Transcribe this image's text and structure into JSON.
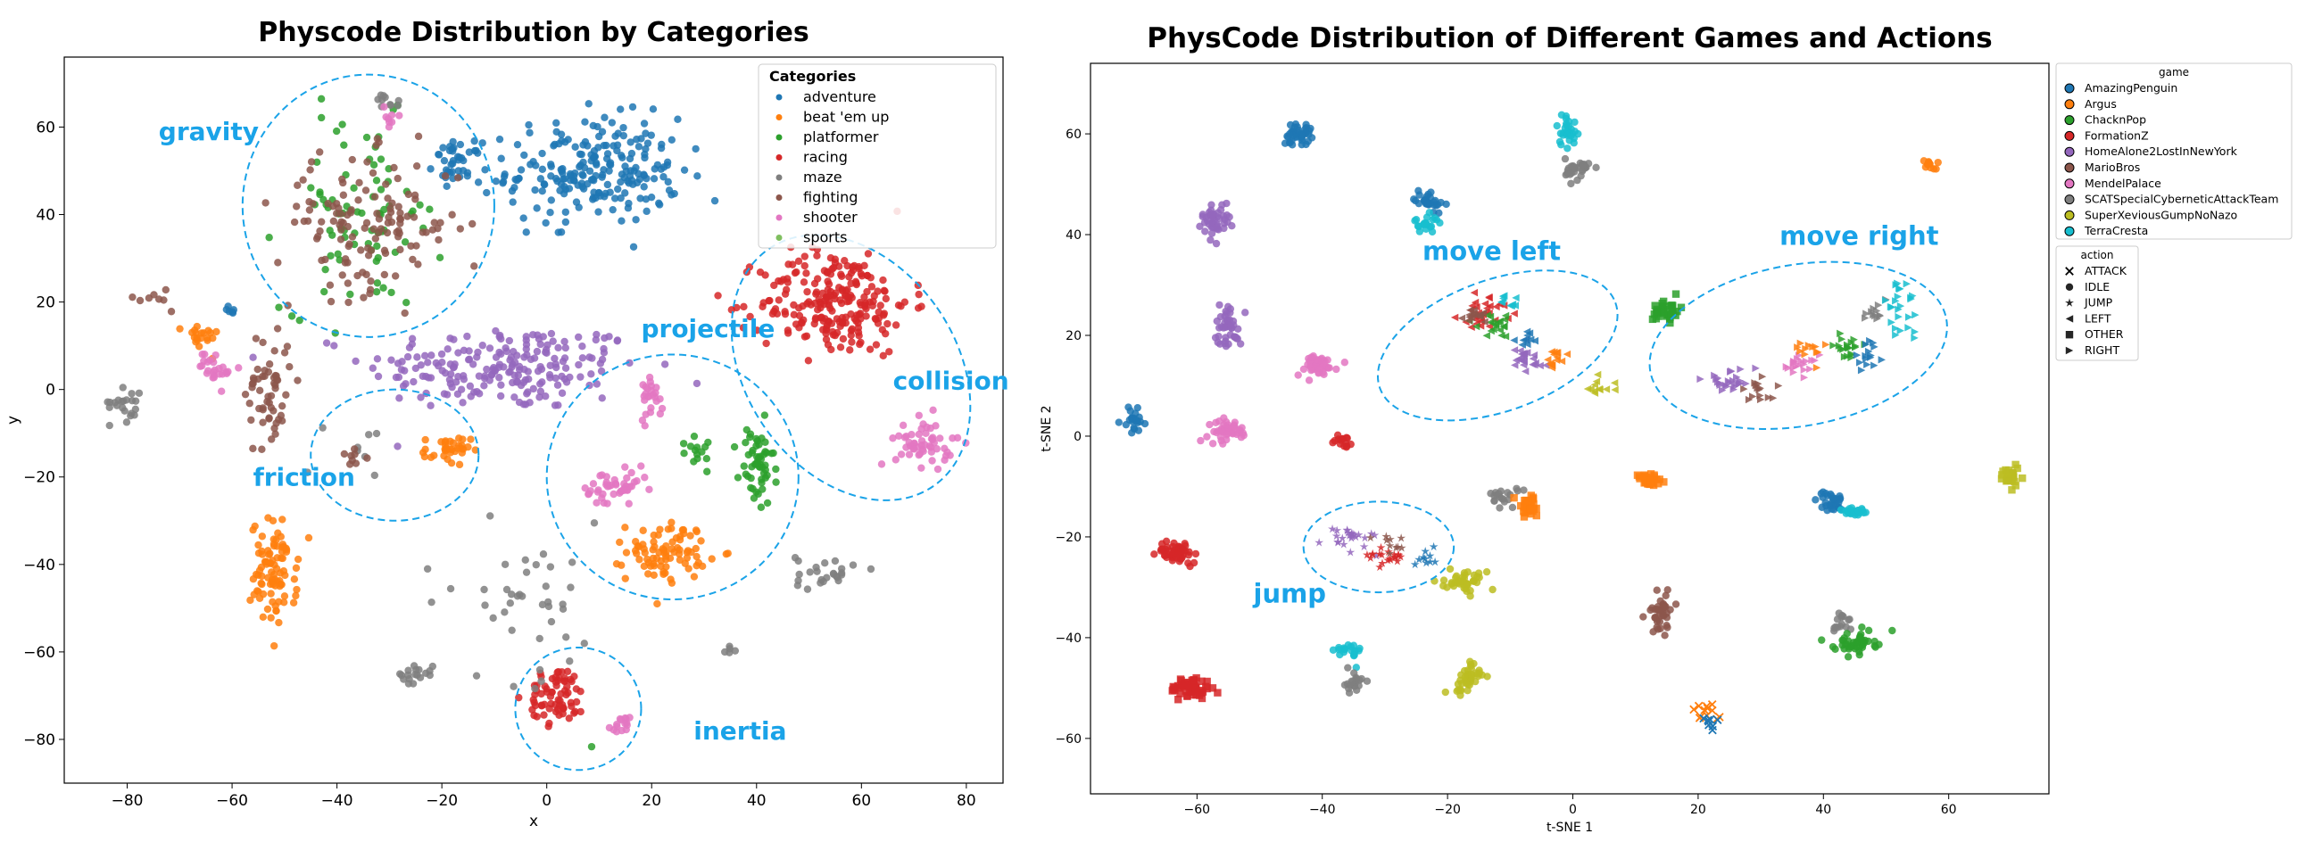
{
  "colors": {
    "adventure": "#1f77b4",
    "beat_em_up": "#ff7f0e",
    "platformer": "#2ca02c",
    "racing": "#d62728",
    "maze": "#7f7f7f",
    "fighting": "#8c564b",
    "shooter": "#e377c2",
    "sports": "#7fbf5f",
    "AmazingPenguin": "#1f77b4",
    "Argus": "#ff7f0e",
    "ChacknPop": "#2ca02c",
    "FormationZ": "#d62728",
    "HomeAlone2LostInNewYork": "#9467bd",
    "MarioBros": "#8c564b",
    "MendelPalace": "#e377c2",
    "SCATSpecialCyberneticAttackTeam": "#7f7f7f",
    "SuperXeviousGumpNoNazo": "#bcbd22",
    "TerraCresta": "#17becf",
    "annotation": "#1aa3e8"
  },
  "chart_data": [
    {
      "type": "scatter",
      "title": "Physcode Distribution by Categories",
      "xlabel": "x",
      "ylabel": "y",
      "xlim": [
        -92,
        87
      ],
      "ylim": [
        -90,
        76
      ],
      "xticks": [
        -80,
        -60,
        -40,
        -20,
        0,
        20,
        40,
        60,
        80
      ],
      "yticks": [
        60,
        40,
        20,
        0,
        -20,
        -40,
        -60,
        -80
      ],
      "grid": false,
      "legend": {
        "title": "Categories",
        "position": "top-right",
        "entries": [
          "adventure",
          "beat 'em up",
          "platformer",
          "racing",
          "maze",
          "fighting",
          "shooter",
          "sports"
        ]
      },
      "series": [
        {
          "name": "adventure",
          "color_key": "adventure",
          "clusters": [
            {
              "cx": 9,
              "cy": 50,
              "rx": 15,
              "ry": 11,
              "n": 220
            },
            {
              "cx": -17,
              "cy": 52,
              "rx": 4,
              "ry": 4,
              "n": 40
            },
            {
              "cx": -60,
              "cy": 18,
              "rx": 2,
              "ry": 1,
              "n": 6
            }
          ]
        },
        {
          "name": "beat 'em up",
          "color_key": "beat_em_up",
          "clusters": [
            {
              "cx": -52,
              "cy": -42,
              "rx": 4,
              "ry": 11,
              "n": 90
            },
            {
              "cx": 23,
              "cy": -37,
              "rx": 7,
              "ry": 6,
              "n": 85
            },
            {
              "cx": -19,
              "cy": -14,
              "rx": 4,
              "ry": 3,
              "n": 35
            },
            {
              "cx": -66,
              "cy": 12,
              "rx": 3,
              "ry": 3,
              "n": 20
            }
          ]
        },
        {
          "name": "platformer",
          "color_key": "platformer",
          "clusters": [
            {
              "cx": -35,
              "cy": 40,
              "rx": 14,
              "ry": 20,
              "n": 80
            },
            {
              "cx": 40,
              "cy": -18,
              "rx": 3,
              "ry": 9,
              "n": 55
            },
            {
              "cx": 28,
              "cy": -13,
              "rx": 5,
              "ry": 4,
              "n": 14
            },
            {
              "cx": 9,
              "cy": -82,
              "rx": 0.5,
              "ry": 0.5,
              "n": 1
            }
          ]
        },
        {
          "name": "racing",
          "color_key": "racing",
          "clusters": [
            {
              "cx": 55,
              "cy": 20,
              "rx": 13,
              "ry": 11,
              "n": 230
            },
            {
              "cx": 2,
              "cy": -70,
              "rx": 5,
              "ry": 6,
              "n": 70
            }
          ]
        },
        {
          "name": "maze",
          "color_key": "maze",
          "clusters": [
            {
              "cx": -80,
              "cy": -3,
              "rx": 3,
              "ry": 4,
              "n": 22
            },
            {
              "cx": -5,
              "cy": -48,
              "rx": 18,
              "ry": 16,
              "n": 40
            },
            {
              "cx": -25,
              "cy": -65,
              "rx": 3,
              "ry": 2,
              "n": 18
            },
            {
              "cx": 53,
              "cy": -42,
              "rx": 5,
              "ry": 4,
              "n": 25
            },
            {
              "cx": -35,
              "cy": -12,
              "rx": 6,
              "ry": 6,
              "n": 8
            },
            {
              "cx": 35,
              "cy": -60,
              "rx": 1,
              "ry": 1,
              "n": 5
            },
            {
              "cx": -30,
              "cy": 66,
              "rx": 3,
              "ry": 2,
              "n": 10
            }
          ]
        },
        {
          "name": "fighting",
          "color_key": "fighting",
          "clusters": [
            {
              "cx": -34,
              "cy": 38,
              "rx": 16,
              "ry": 14,
              "n": 130
            },
            {
              "cx": -53,
              "cy": 0,
              "rx": 4,
              "ry": 14,
              "n": 55
            },
            {
              "cx": -75,
              "cy": 21,
              "rx": 3,
              "ry": 2,
              "n": 8
            },
            {
              "cx": -37,
              "cy": -16,
              "rx": 4,
              "ry": 3,
              "n": 8
            }
          ]
        },
        {
          "name": "shooter",
          "color_key": "shooter",
          "clusters": [
            {
              "cx": 72,
              "cy": -12,
              "rx": 5,
              "ry": 5,
              "n": 55
            },
            {
              "cx": 13,
              "cy": -23,
              "rx": 6,
              "ry": 4,
              "n": 45
            },
            {
              "cx": 20,
              "cy": -1,
              "rx": 2,
              "ry": 5,
              "n": 25
            },
            {
              "cx": 14,
              "cy": -77,
              "rx": 2,
              "ry": 2,
              "n": 15
            },
            {
              "cx": -63,
              "cy": 5,
              "rx": 3,
              "ry": 4,
              "n": 25
            },
            {
              "cx": -30,
              "cy": 62,
              "rx": 2,
              "ry": 2,
              "n": 8
            }
          ]
        },
        {
          "name": "sports",
          "color_key": "sports",
          "clusters": []
        }
      ],
      "extra_clusters": [
        {
          "name": "violet",
          "color": "#9467bd",
          "cx": -8,
          "cy": 5,
          "rx": 24,
          "ry": 9,
          "n": 210
        }
      ],
      "annotations": [
        {
          "text": "gravity",
          "x": -74,
          "y": 57,
          "ellipse": {
            "cx": -34,
            "cy": 42,
            "rx": 24,
            "ry": 30
          }
        },
        {
          "text": "projectile",
          "x": 18,
          "y": 12,
          "ellipse": {
            "cx": 24,
            "cy": -20,
            "rx": 24,
            "ry": 28
          }
        },
        {
          "text": "collision",
          "x": 66,
          "y": 0,
          "ellipse": {
            "cx": 58,
            "cy": 5,
            "rx": 20,
            "ry": 33,
            "angle": -35
          }
        },
        {
          "text": "friction",
          "x": -56,
          "y": -22,
          "ellipse": {
            "cx": -29,
            "cy": -15,
            "rx": 16,
            "ry": 15
          }
        },
        {
          "text": "inertia",
          "x": 28,
          "y": -80,
          "ellipse": {
            "cx": 6,
            "cy": -73,
            "rx": 12,
            "ry": 14
          }
        }
      ]
    },
    {
      "type": "scatter",
      "title": "PhysCode Distribution of Different Games and Actions",
      "xlabel": "t-SNE 1",
      "ylabel": "t-SNE 2",
      "xlim": [
        -77,
        76
      ],
      "ylim": [
        -71,
        74
      ],
      "xticks": [
        -60,
        -40,
        -20,
        0,
        20,
        40,
        60
      ],
      "yticks": [
        60,
        40,
        20,
        0,
        -20,
        -40,
        -60
      ],
      "grid": false,
      "legends": [
        {
          "title": "game",
          "position": "right",
          "entries": [
            "AmazingPenguin",
            "Argus",
            "ChacknPop",
            "FormationZ",
            "HomeAlone2LostInNewYork",
            "MarioBros",
            "MendelPalace",
            "SCATSpecialCyberneticAttackTeam",
            "SuperXeviousGumpNoNazo",
            "TerraCresta"
          ]
        },
        {
          "title": "action",
          "position": "right",
          "entries": [
            "ATTACK",
            "IDLE",
            "JUMP",
            "LEFT",
            "OTHER",
            "RIGHT"
          ]
        }
      ],
      "clusters": [
        {
          "game": "AmazingPenguin",
          "action": "IDLE",
          "cx": -44,
          "cy": 60,
          "rx": 2,
          "ry": 2,
          "n": 40
        },
        {
          "game": "AmazingPenguin",
          "action": "IDLE",
          "cx": -70,
          "cy": 3,
          "rx": 1.5,
          "ry": 2,
          "n": 25
        },
        {
          "game": "AmazingPenguin",
          "action": "IDLE",
          "cx": -23,
          "cy": 47,
          "rx": 2,
          "ry": 2,
          "n": 30
        },
        {
          "game": "AmazingPenguin",
          "action": "IDLE",
          "cx": 41,
          "cy": -13,
          "rx": 2,
          "ry": 2,
          "n": 30
        },
        {
          "game": "TerraCresta",
          "action": "IDLE",
          "cx": -23,
          "cy": 42,
          "rx": 2,
          "ry": 1.5,
          "n": 20
        },
        {
          "game": "TerraCresta",
          "action": "IDLE",
          "cx": -1,
          "cy": 61,
          "rx": 1.5,
          "ry": 3,
          "n": 30
        },
        {
          "game": "TerraCresta",
          "action": "IDLE",
          "cx": 45,
          "cy": -15,
          "rx": 2,
          "ry": 1,
          "n": 25
        },
        {
          "game": "TerraCresta",
          "action": "IDLE",
          "cx": -36,
          "cy": -43,
          "rx": 2,
          "ry": 2,
          "n": 20
        },
        {
          "game": "SCATSpecialCyberneticAttackTeam",
          "action": "IDLE",
          "cx": 1,
          "cy": 53,
          "rx": 2,
          "ry": 2,
          "n": 30
        },
        {
          "game": "SCATSpecialCyberneticAttackTeam",
          "action": "IDLE",
          "cx": -35,
          "cy": -49,
          "rx": 1.5,
          "ry": 2,
          "n": 20
        },
        {
          "game": "SCATSpecialCyberneticAttackTeam",
          "action": "IDLE",
          "cx": -11,
          "cy": -12,
          "rx": 2,
          "ry": 2,
          "n": 20
        },
        {
          "game": "SCATSpecialCyberneticAttackTeam",
          "action": "IDLE",
          "cx": 43,
          "cy": -37,
          "rx": 1.5,
          "ry": 2,
          "n": 15
        },
        {
          "game": "HomeAlone2LostInNewYork",
          "action": "IDLE",
          "cx": -57,
          "cy": 43,
          "rx": 2,
          "ry": 3,
          "n": 45
        },
        {
          "game": "HomeAlone2LostInNewYork",
          "action": "IDLE",
          "cx": -55,
          "cy": 22,
          "rx": 2,
          "ry": 4,
          "n": 45
        },
        {
          "game": "MendelPalace",
          "action": "IDLE",
          "cx": -41,
          "cy": 14,
          "rx": 3,
          "ry": 2,
          "n": 45
        },
        {
          "game": "MendelPalace",
          "action": "IDLE",
          "cx": -55,
          "cy": 1,
          "rx": 3,
          "ry": 2,
          "n": 45
        },
        {
          "game": "FormationZ",
          "action": "IDLE",
          "cx": -37,
          "cy": -1,
          "rx": 1.5,
          "ry": 1,
          "n": 15
        },
        {
          "game": "FormationZ",
          "action": "IDLE",
          "cx": -63,
          "cy": -23,
          "rx": 3,
          "ry": 2,
          "n": 55
        },
        {
          "game": "FormationZ",
          "action": "OTHER",
          "cx": -61,
          "cy": -50,
          "rx": 3,
          "ry": 2,
          "n": 55
        },
        {
          "game": "ChacknPop",
          "action": "OTHER",
          "cx": 15,
          "cy": 25,
          "rx": 2,
          "ry": 2,
          "n": 35
        },
        {
          "game": "ChacknPop",
          "action": "IDLE",
          "cx": 45,
          "cy": -41,
          "rx": 3,
          "ry": 2,
          "n": 45
        },
        {
          "game": "Argus",
          "action": "OTHER",
          "cx": 12,
          "cy": -9,
          "rx": 2,
          "ry": 1.5,
          "n": 30
        },
        {
          "game": "Argus",
          "action": "OTHER",
          "cx": -7,
          "cy": -14,
          "rx": 2,
          "ry": 2,
          "n": 35
        },
        {
          "game": "Argus",
          "action": "IDLE",
          "cx": 57,
          "cy": 54,
          "rx": 1,
          "ry": 1,
          "n": 12
        },
        {
          "game": "SuperXeviousGumpNoNazo",
          "action": "IDLE",
          "cx": -17,
          "cy": -29,
          "rx": 3,
          "ry": 2,
          "n": 40
        },
        {
          "game": "SuperXeviousGumpNoNazo",
          "action": "IDLE",
          "cx": -17,
          "cy": -48,
          "rx": 2,
          "ry": 3,
          "n": 40
        },
        {
          "game": "SuperXeviousGumpNoNazo",
          "action": "OTHER",
          "cx": 70,
          "cy": -8,
          "rx": 2,
          "ry": 2,
          "n": 25
        },
        {
          "game": "MarioBros",
          "action": "IDLE",
          "cx": 14,
          "cy": -35,
          "rx": 2,
          "ry": 4,
          "n": 40
        },
        {
          "game": "Argus",
          "action": "ATTACK",
          "cx": 21,
          "cy": -55,
          "rx": 2,
          "ry": 2,
          "n": 12
        },
        {
          "game": "AmazingPenguin",
          "action": "ATTACK",
          "cx": 22,
          "cy": -57,
          "rx": 1,
          "ry": 1,
          "n": 8
        },
        {
          "game": "FormationZ",
          "action": "LEFT",
          "cx": -14,
          "cy": 25,
          "rx": 4,
          "ry": 3,
          "n": 30
        },
        {
          "game": "ChacknPop",
          "action": "LEFT",
          "cx": -12,
          "cy": 22,
          "rx": 3,
          "ry": 2,
          "n": 20
        },
        {
          "game": "MarioBros",
          "action": "LEFT",
          "cx": -16,
          "cy": 24,
          "rx": 3,
          "ry": 2,
          "n": 15
        },
        {
          "game": "HomeAlone2LostInNewYork",
          "action": "LEFT",
          "cx": -8,
          "cy": 15,
          "rx": 3,
          "ry": 3,
          "n": 25
        },
        {
          "game": "Argus",
          "action": "LEFT",
          "cx": -3,
          "cy": 15,
          "rx": 2,
          "ry": 2,
          "n": 15
        },
        {
          "game": "SuperXeviousGumpNoNazo",
          "action": "LEFT",
          "cx": 4,
          "cy": 10,
          "rx": 2,
          "ry": 2,
          "n": 12
        },
        {
          "game": "AmazingPenguin",
          "action": "LEFT",
          "cx": -7,
          "cy": 19,
          "rx": 2,
          "ry": 2,
          "n": 10
        },
        {
          "game": "TerraCresta",
          "action": "LEFT",
          "cx": -10,
          "cy": 27,
          "rx": 2,
          "ry": 2,
          "n": 10
        },
        {
          "game": "HomeAlone2LostInNewYork",
          "action": "RIGHT",
          "cx": 25,
          "cy": 11,
          "rx": 4,
          "ry": 2,
          "n": 25
        },
        {
          "game": "MarioBros",
          "action": "RIGHT",
          "cx": 30,
          "cy": 9,
          "rx": 3,
          "ry": 2,
          "n": 15
        },
        {
          "game": "MendelPalace",
          "action": "RIGHT",
          "cx": 36,
          "cy": 14,
          "rx": 3,
          "ry": 2,
          "n": 20
        },
        {
          "game": "Argus",
          "action": "RIGHT",
          "cx": 38,
          "cy": 17,
          "rx": 2,
          "ry": 2,
          "n": 12
        },
        {
          "game": "ChacknPop",
          "action": "RIGHT",
          "cx": 44,
          "cy": 18,
          "rx": 2,
          "ry": 2,
          "n": 20
        },
        {
          "game": "AmazingPenguin",
          "action": "RIGHT",
          "cx": 47,
          "cy": 16,
          "rx": 2,
          "ry": 2,
          "n": 15
        },
        {
          "game": "SCATSpecialCyberneticAttackTeam",
          "action": "RIGHT",
          "cx": 48,
          "cy": 24,
          "rx": 2,
          "ry": 2,
          "n": 12
        },
        {
          "game": "TerraCresta",
          "action": "RIGHT",
          "cx": 52,
          "cy": 25,
          "rx": 3,
          "ry": 5,
          "n": 25
        },
        {
          "game": "HomeAlone2LostInNewYork",
          "action": "JUMP",
          "cx": -35,
          "cy": -20,
          "rx": 4,
          "ry": 2,
          "n": 25
        },
        {
          "game": "FormationZ",
          "action": "JUMP",
          "cx": -30,
          "cy": -24,
          "rx": 3,
          "ry": 2,
          "n": 20
        },
        {
          "game": "MarioBros",
          "action": "JUMP",
          "cx": -29,
          "cy": -22,
          "rx": 2,
          "ry": 2,
          "n": 10
        },
        {
          "game": "AmazingPenguin",
          "action": "JUMP",
          "cx": -23,
          "cy": -24,
          "rx": 2,
          "ry": 1.5,
          "n": 10
        }
      ],
      "annotations": [
        {
          "text": "move left",
          "x": -24,
          "y": 35,
          "ellipse": {
            "cx": -12,
            "cy": 18,
            "rx": 20,
            "ry": 13,
            "angle": -20
          }
        },
        {
          "text": "move right",
          "x": 33,
          "y": 38,
          "ellipse": {
            "cx": 36,
            "cy": 18,
            "rx": 24,
            "ry": 16,
            "angle": -10
          }
        },
        {
          "text": "jump",
          "x": -51,
          "y": -33,
          "ellipse": {
            "cx": -31,
            "cy": -22,
            "rx": 12,
            "ry": 9
          }
        }
      ]
    }
  ]
}
